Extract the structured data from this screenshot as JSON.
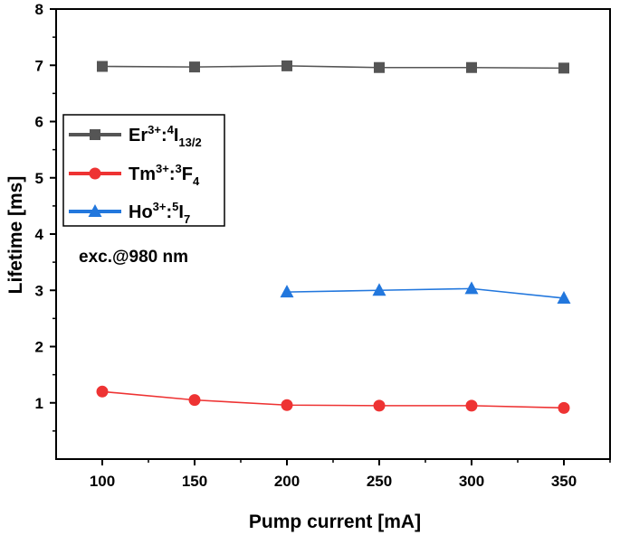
{
  "chart_data": {
    "type": "line",
    "title": "",
    "xlabel": "Pump current [mA]",
    "ylabel": "Lifetime [ms]",
    "xlim": [
      75,
      375
    ],
    "ylim": [
      0,
      8
    ],
    "xticks": [
      100,
      150,
      200,
      250,
      300,
      350
    ],
    "yticks": [
      1,
      2,
      3,
      4,
      5,
      6,
      7,
      8
    ],
    "annotation": "exc.@980 nm",
    "series": [
      {
        "name": "Er3+:4I13/2",
        "legend": {
          "base": "Er",
          "sup1": "3+",
          "mid": ":",
          "sup2": "4",
          "main": "I",
          "sub": "13/2"
        },
        "color": "#555555",
        "marker": "square",
        "x": [
          100,
          150,
          200,
          250,
          300,
          350
        ],
        "y": [
          6.98,
          6.97,
          6.99,
          6.96,
          6.96,
          6.95
        ]
      },
      {
        "name": "Tm3+:3F4",
        "legend": {
          "base": "Tm",
          "sup1": "3+",
          "mid": ":",
          "sup2": "3",
          "main": "F",
          "sub": "4"
        },
        "color": "#ee3333",
        "marker": "circle",
        "x": [
          100,
          150,
          200,
          250,
          300,
          350
        ],
        "y": [
          1.2,
          1.05,
          0.96,
          0.95,
          0.95,
          0.91
        ]
      },
      {
        "name": "Ho3+:5I7",
        "legend": {
          "base": "Ho",
          "sup1": "3+",
          "mid": ":",
          "sup2": "5",
          "main": "I",
          "sub": "7"
        },
        "color": "#2277dd",
        "marker": "triangle",
        "x": [
          200,
          250,
          300,
          350
        ],
        "y": [
          2.97,
          3.0,
          3.03,
          2.86
        ]
      }
    ]
  }
}
